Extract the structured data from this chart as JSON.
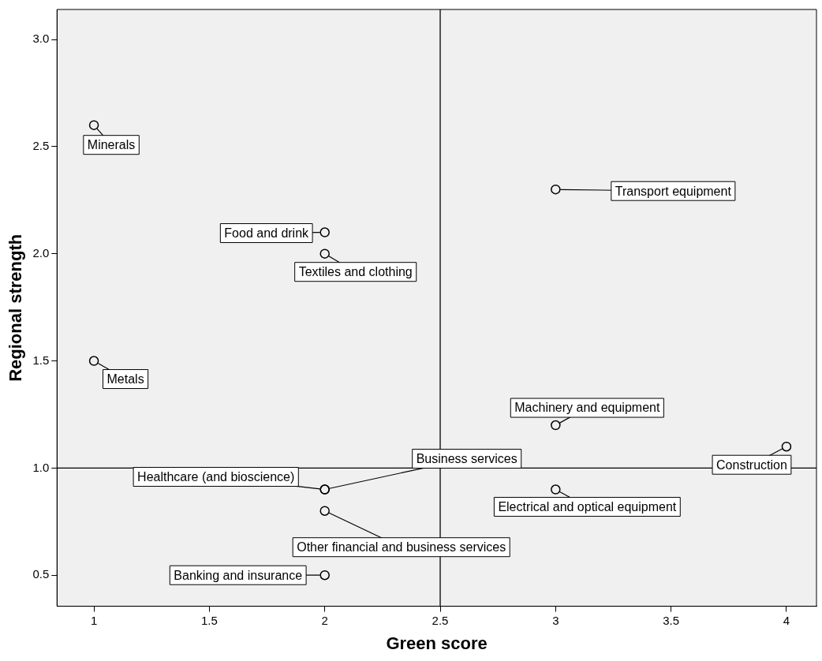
{
  "chart_data": {
    "type": "scatter",
    "xlabel": "Green score",
    "ylabel": "Regional strength",
    "x": [
      1,
      2,
      2,
      1,
      3,
      3,
      4,
      3,
      2,
      2,
      2,
      2
    ],
    "series": [
      {
        "color": "#000000",
        "values": [
          2.6,
          2.1,
          2.0,
          1.5,
          2.3,
          1.2,
          1.1,
          0.9,
          0.9,
          0.9,
          0.8,
          0.5
        ]
      }
    ],
    "xlim": [
      0.84,
      4.13
    ],
    "ylim": [
      0.355,
      3.14
    ],
    "xticks": [
      {
        "value": 1,
        "label": "1"
      },
      1.5,
      2,
      2.5,
      3,
      3.5,
      {
        "value": 4,
        "label": "4"
      }
    ],
    "yticks": [
      0.5,
      {
        "value": 1,
        "label": "1.0"
      },
      1.5,
      {
        "value": 2,
        "label": "2.0"
      },
      2.5,
      {
        "value": 3,
        "label": "3.0"
      }
    ],
    "ref_lines": [
      {
        "axis": "x",
        "value": 2.5,
        "color": "#000000"
      },
      {
        "axis": "y",
        "value": 1,
        "color": "#000000"
      }
    ],
    "marker": "circle",
    "grid": false,
    "legend": false,
    "annotations": [
      {
        "text": "Minerals",
        "x": 1,
        "y": 2.6
      },
      {
        "text": "Food and drink",
        "x": 2,
        "y": 2.1
      },
      {
        "text": "Textiles and clothing",
        "x": 2,
        "y": 2.0
      },
      {
        "text": "Metals",
        "x": 1,
        "y": 1.5
      },
      {
        "text": "Transport equipment",
        "x": 3,
        "y": 2.3
      },
      {
        "text": "Machinery and equipment",
        "x": 3,
        "y": 1.2
      },
      {
        "text": "Construction",
        "x": 4,
        "y": 1.1
      },
      {
        "text": "Electrical and optical equipment",
        "x": 3,
        "y": 0.9
      },
      {
        "text": "Healthcare (and bioscience)",
        "x": 2,
        "y": 0.9
      },
      {
        "text": "Business services",
        "x": 2,
        "y": 0.9
      },
      {
        "text": "Other financial and business services",
        "x": 2,
        "y": 0.8
      },
      {
        "text": "Banking and insurance",
        "x": 2,
        "y": 0.5
      }
    ]
  }
}
